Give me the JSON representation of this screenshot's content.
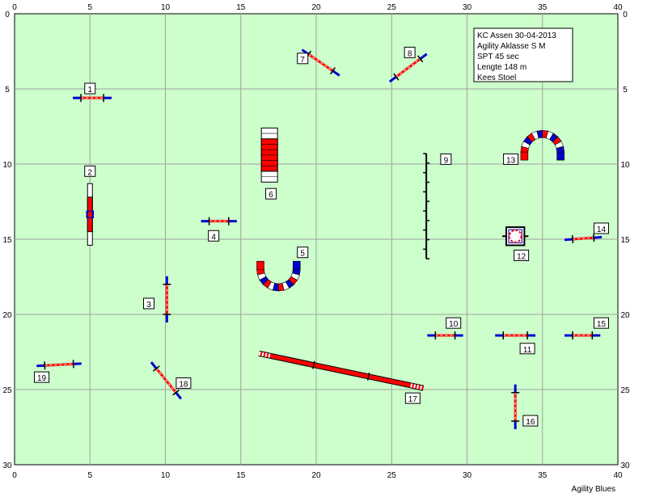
{
  "course": {
    "field": {
      "width": 40,
      "height": 30,
      "background": "#ccffcc",
      "grid_color": "#a0a0a0"
    },
    "x_ticks": [
      "0",
      "5",
      "10",
      "15",
      "20",
      "25",
      "30",
      "35",
      "40"
    ],
    "y_ticks": [
      "0",
      "5",
      "10",
      "15",
      "20",
      "25",
      "30"
    ],
    "info_lines": [
      "KC Assen 30-04-2013",
      "Agility Aklasse S M",
      "SPT 45 sec",
      "Lengte 148 m",
      "Kees Stoel"
    ],
    "footer": "Agility Blues",
    "colors": {
      "red": "#ff0000",
      "blue": "#0000cc",
      "dark": "#000000",
      "white": "#ffffff"
    },
    "obstacles": [
      {
        "number": "1",
        "kind": "hurdle",
        "a": [
          4.4,
          5.6
        ],
        "b": [
          5.9,
          5.6
        ],
        "label": [
          5.0,
          5.0
        ]
      },
      {
        "number": "2",
        "kind": "weave2",
        "a": [
          5.0,
          11.3
        ],
        "b": [
          5.0,
          15.4
        ],
        "label": [
          5.0,
          10.5
        ]
      },
      {
        "number": "3",
        "kind": "hurdle",
        "a": [
          10.1,
          18.0
        ],
        "b": [
          10.1,
          20.0
        ],
        "label": [
          8.9,
          19.3
        ]
      },
      {
        "number": "4",
        "kind": "hurdle",
        "a": [
          12.9,
          13.8
        ],
        "b": [
          14.2,
          13.8
        ],
        "label": [
          13.2,
          14.8
        ]
      },
      {
        "number": "5",
        "kind": "tunnel_u",
        "center": [
          17.5,
          17.0
        ],
        "radius": 1.2,
        "opening": "up",
        "label": [
          19.1,
          15.9
        ]
      },
      {
        "number": "6",
        "kind": "a_frame",
        "x": 16.9,
        "top": 7.6,
        "bottom": 11.2,
        "label": [
          17.0,
          12.0
        ]
      },
      {
        "number": "7",
        "kind": "hurdle",
        "a": [
          19.5,
          2.7
        ],
        "b": [
          21.1,
          3.8
        ],
        "label": [
          19.1,
          3.0
        ]
      },
      {
        "number": "8",
        "kind": "hurdle",
        "a": [
          25.3,
          4.2
        ],
        "b": [
          26.9,
          3.0
        ],
        "label": [
          26.2,
          2.6
        ]
      },
      {
        "number": "9",
        "kind": "weave_poles",
        "x": 27.3,
        "top": 9.3,
        "bottom": 16.3,
        "poles": 12,
        "label": [
          28.6,
          9.7
        ]
      },
      {
        "number": "10",
        "kind": "hurdle",
        "a": [
          27.9,
          21.4
        ],
        "b": [
          29.2,
          21.4
        ],
        "label": [
          29.1,
          20.6
        ]
      },
      {
        "number": "11",
        "kind": "hurdle",
        "a": [
          32.4,
          21.4
        ],
        "b": [
          34.0,
          21.4
        ],
        "label": [
          34.0,
          22.3
        ]
      },
      {
        "number": "12",
        "kind": "table",
        "center": [
          33.2,
          14.8
        ],
        "size": 1.2,
        "label": [
          33.6,
          16.1
        ]
      },
      {
        "number": "13",
        "kind": "tunnel_u",
        "center": [
          35.0,
          9.2
        ],
        "radius": 1.2,
        "opening": "down",
        "label": [
          32.9,
          9.7
        ]
      },
      {
        "number": "14",
        "kind": "hurdle",
        "a": [
          37.0,
          15.0
        ],
        "b": [
          38.4,
          14.9
        ],
        "label": [
          38.9,
          14.3
        ]
      },
      {
        "number": "15",
        "kind": "hurdle",
        "a": [
          37.0,
          21.4
        ],
        "b": [
          38.3,
          21.4
        ],
        "label": [
          38.9,
          20.6
        ]
      },
      {
        "number": "16",
        "kind": "hurdle",
        "a": [
          33.2,
          25.2
        ],
        "b": [
          33.2,
          27.1
        ],
        "label": [
          34.2,
          27.1
        ]
      },
      {
        "number": "17",
        "kind": "dogwalk",
        "a": [
          16.2,
          22.6
        ],
        "b": [
          27.1,
          24.9
        ],
        "label": [
          26.4,
          25.6
        ]
      },
      {
        "number": "18",
        "kind": "hurdle",
        "a": [
          9.4,
          23.6
        ],
        "b": [
          10.7,
          25.2
        ],
        "label": [
          11.2,
          24.6
        ]
      },
      {
        "number": "19",
        "kind": "hurdle",
        "a": [
          2.0,
          23.4
        ],
        "b": [
          3.9,
          23.3
        ],
        "label": [
          1.8,
          24.2
        ]
      }
    ]
  }
}
